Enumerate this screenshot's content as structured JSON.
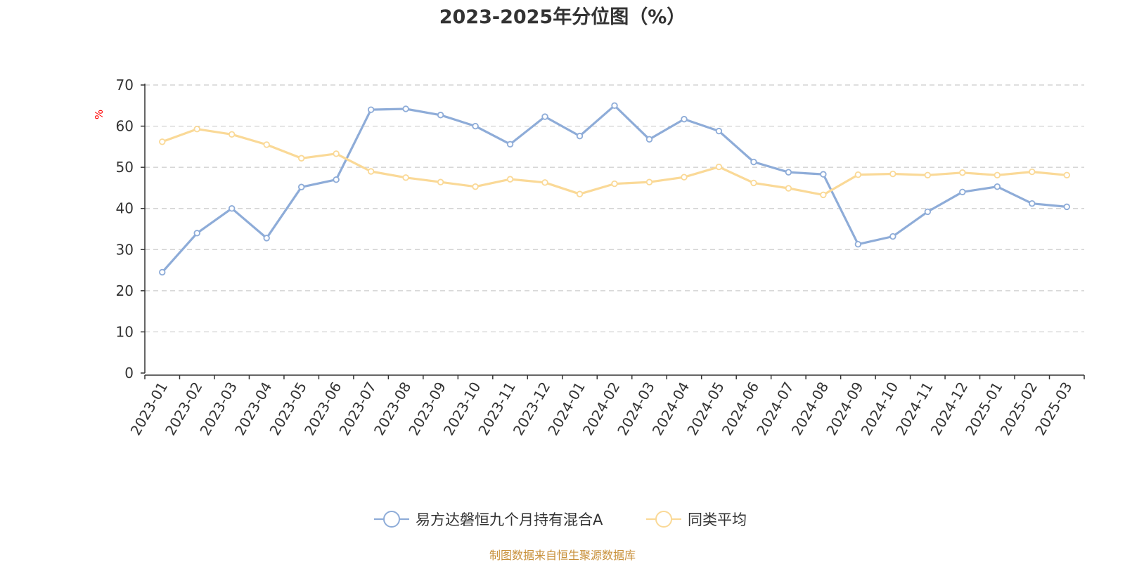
{
  "chart_data": {
    "type": "line",
    "title": "2023-2025年分位图（%）",
    "ylabel": "%",
    "xlabel": "",
    "ylim": [
      0,
      70
    ],
    "yticks": [
      0,
      10,
      20,
      30,
      40,
      50,
      60,
      70
    ],
    "grid": true,
    "legend_position": "bottom-center",
    "categories": [
      "2023-01",
      "2023-02",
      "2023-03",
      "2023-04",
      "2023-05",
      "2023-06",
      "2023-07",
      "2023-08",
      "2023-09",
      "2023-10",
      "2023-11",
      "2023-12",
      "2024-01",
      "2024-02",
      "2024-03",
      "2024-04",
      "2024-05",
      "2024-06",
      "2024-07",
      "2024-08",
      "2024-09",
      "2024-10",
      "2024-11",
      "2024-12",
      "2025-01",
      "2025-02",
      "2025-03"
    ],
    "series": [
      {
        "name": "易方达磐恒九个月持有混合A",
        "color": "#8eacd8",
        "values": [
          24.5,
          34.0,
          40.0,
          32.8,
          45.2,
          47.0,
          64.0,
          64.2,
          62.7,
          60.0,
          55.6,
          62.3,
          57.6,
          65.0,
          56.8,
          61.7,
          58.8,
          51.3,
          48.8,
          48.3,
          31.3,
          33.2,
          39.2,
          44.0,
          45.3,
          41.2,
          40.4
        ]
      },
      {
        "name": "同类平均",
        "color": "#fad997",
        "values": [
          56.2,
          59.3,
          58.0,
          55.5,
          52.2,
          53.3,
          49.0,
          47.5,
          46.4,
          45.3,
          47.1,
          46.3,
          43.5,
          46.0,
          46.4,
          47.6,
          50.1,
          46.2,
          44.9,
          43.3,
          48.2,
          48.4,
          48.1,
          48.7,
          48.1,
          48.9,
          48.1
        ]
      }
    ]
  },
  "source": "制图数据来自恒生聚源数据库",
  "colors": {
    "axis": "#333333",
    "grid": "#cccccc",
    "unit": "#ff0000",
    "source": "#c8903a",
    "marker_fill": "#ffffff"
  }
}
